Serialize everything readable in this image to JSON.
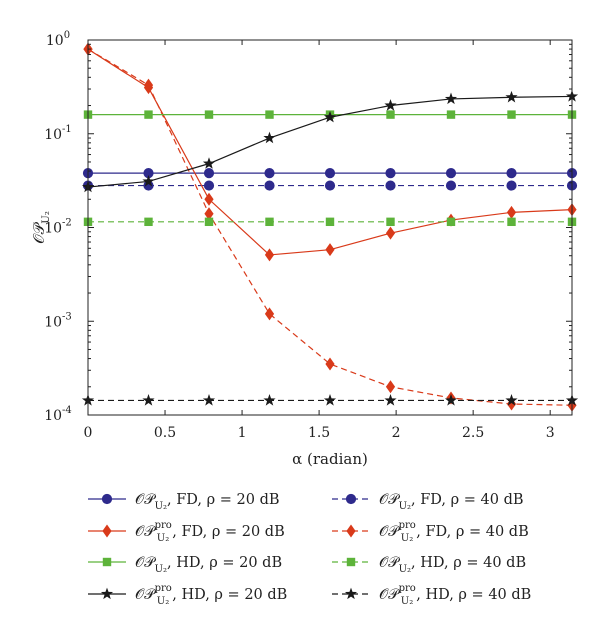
{
  "chart_data": {
    "type": "line",
    "xlabel": "α (radian)",
    "ylabel": "OP_U2",
    "ylabel_parts": {
      "main": "𝒪𝒫",
      "sub": "U₂"
    },
    "xlim": [
      0,
      3.1416
    ],
    "ylim": [
      0.0001,
      1
    ],
    "yscale": "log",
    "xticks": [
      0,
      0.5,
      1,
      1.5,
      2,
      2.5,
      3
    ],
    "xtick_labels": [
      "0",
      "0.5",
      "1",
      "1.5",
      "2",
      "2.5",
      "3"
    ],
    "yticks": [
      0.0001,
      0.001,
      0.01,
      0.1,
      1
    ],
    "ytick_labels": [
      {
        "base": "10",
        "exp": "-4"
      },
      {
        "base": "10",
        "exp": "-3"
      },
      {
        "base": "10",
        "exp": "-2"
      },
      {
        "base": "10",
        "exp": "-1"
      },
      {
        "base": "10",
        "exp": "0"
      }
    ],
    "grid": false,
    "legend_position": "below",
    "x": [
      0,
      0.3927,
      0.7854,
      1.1781,
      1.5708,
      1.9635,
      2.3562,
      2.7489,
      3.1416
    ],
    "series": [
      {
        "legend": {
          "main": "𝒪𝒫",
          "sub": "U₂",
          "sup": "",
          "rest": ", FD, ρ = 20 dB"
        },
        "color": "#2e2a8c",
        "dash": "solid",
        "marker": "circle",
        "values": [
          0.038,
          0.038,
          0.038,
          0.038,
          0.038,
          0.038,
          0.038,
          0.038,
          0.038
        ]
      },
      {
        "legend": {
          "main": "𝒪𝒫",
          "sub": "U₂",
          "sup": "",
          "rest": ", FD, ρ = 40 dB"
        },
        "color": "#2e2a8c",
        "dash": "dashed",
        "marker": "circle",
        "values": [
          0.028,
          0.028,
          0.028,
          0.028,
          0.028,
          0.028,
          0.028,
          0.028,
          0.028
        ]
      },
      {
        "legend": {
          "main": "𝒪𝒫",
          "sub": "U₂",
          "sup": "pro",
          "rest": ", FD, ρ = 20 dB"
        },
        "color": "#d93a1a",
        "dash": "solid",
        "marker": "diamond",
        "values": [
          0.8,
          0.31,
          0.02,
          0.0051,
          0.0058,
          0.0087,
          0.012,
          0.0145,
          0.0155
        ]
      },
      {
        "legend": {
          "main": "𝒪𝒫",
          "sub": "U₂",
          "sup": "pro",
          "rest": ", FD, ρ = 40 dB"
        },
        "color": "#d93a1a",
        "dash": "dashed",
        "marker": "diamond",
        "values": [
          0.8,
          0.33,
          0.014,
          0.0012,
          0.00035,
          0.0002,
          0.000152,
          0.000131,
          0.000127
        ]
      },
      {
        "legend": {
          "main": "𝒪𝒫",
          "sub": "U₂",
          "sup": "",
          "rest": ", HD, ρ = 20 dB"
        },
        "color": "#5db33a",
        "dash": "solid",
        "marker": "square",
        "values": [
          0.16,
          0.16,
          0.16,
          0.16,
          0.16,
          0.16,
          0.16,
          0.16,
          0.16
        ]
      },
      {
        "legend": {
          "main": "𝒪𝒫",
          "sub": "U₂",
          "sup": "",
          "rest": ", HD, ρ = 40 dB"
        },
        "color": "#5db33a",
        "dash": "dashed",
        "marker": "square",
        "values": [
          0.0115,
          0.0115,
          0.0115,
          0.0115,
          0.0115,
          0.0115,
          0.0115,
          0.0115,
          0.0115
        ]
      },
      {
        "legend": {
          "main": "𝒪𝒫",
          "sub": "U₂",
          "sup": "pro",
          "rest": ", HD, ρ = 20 dB"
        },
        "color": "#1a1a1a",
        "dash": "solid",
        "marker": "star",
        "values": [
          0.027,
          0.031,
          0.048,
          0.09,
          0.15,
          0.2,
          0.235,
          0.245,
          0.25
        ]
      },
      {
        "legend": {
          "main": "𝒪𝒫",
          "sub": "U₂",
          "sup": "pro",
          "rest": ", HD, ρ = 40 dB"
        },
        "color": "#1a1a1a",
        "dash": "dashed",
        "marker": "star",
        "values": [
          0.000143,
          0.000143,
          0.000143,
          0.000143,
          0.000143,
          0.000143,
          0.000143,
          0.000143,
          0.000143
        ]
      }
    ]
  }
}
